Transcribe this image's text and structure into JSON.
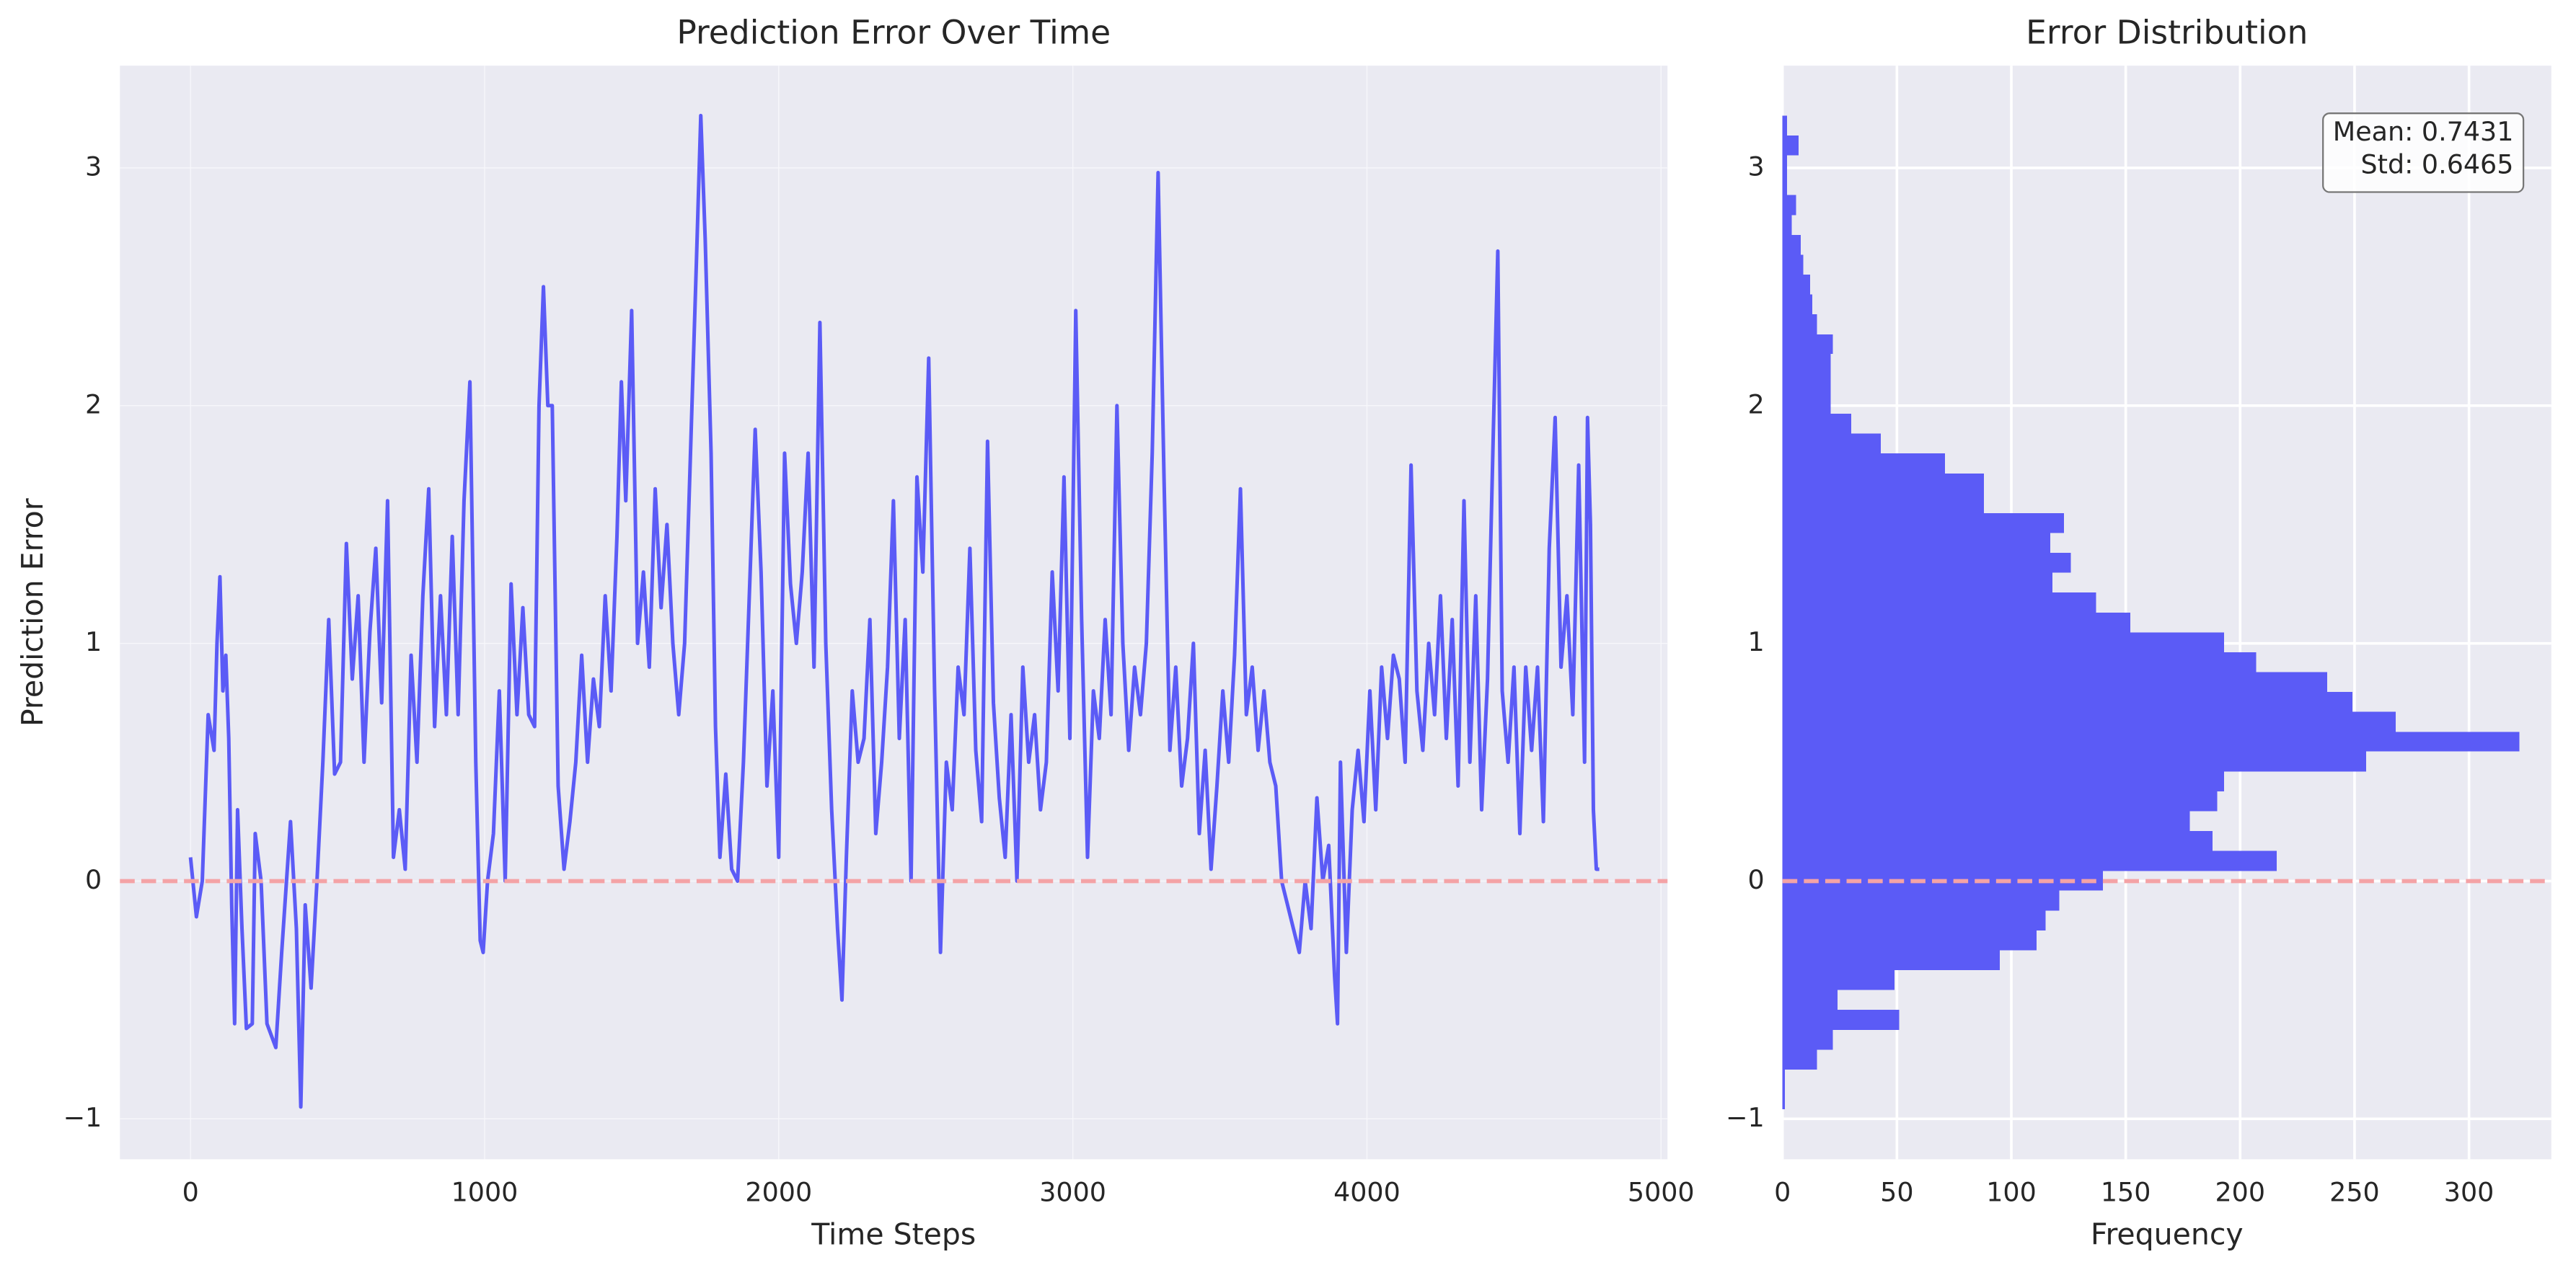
{
  "chart_data": [
    {
      "type": "line",
      "title": "Prediction Error Over Time",
      "x_label": "Time Steps",
      "y_label": "Prediction Error",
      "x": [
        0,
        20,
        40,
        60,
        80,
        90,
        100,
        110,
        120,
        130,
        140,
        150,
        160,
        175,
        190,
        210,
        220,
        240,
        260,
        290,
        310,
        340,
        360,
        375,
        390,
        410,
        430,
        450,
        470,
        490,
        510,
        530,
        550,
        570,
        590,
        610,
        630,
        650,
        670,
        690,
        710,
        730,
        750,
        770,
        790,
        810,
        830,
        850,
        870,
        890,
        910,
        930,
        950,
        970,
        985,
        995,
        1010,
        1030,
        1050,
        1070,
        1090,
        1110,
        1130,
        1150,
        1170,
        1185,
        1200,
        1215,
        1230,
        1250,
        1270,
        1290,
        1310,
        1330,
        1350,
        1370,
        1390,
        1410,
        1430,
        1450,
        1465,
        1480,
        1500,
        1520,
        1540,
        1560,
        1580,
        1600,
        1620,
        1640,
        1660,
        1680,
        1700,
        1720,
        1735,
        1750,
        1770,
        1785,
        1800,
        1820,
        1840,
        1860,
        1880,
        1900,
        1920,
        1940,
        1960,
        1980,
        2000,
        2020,
        2040,
        2060,
        2080,
        2100,
        2120,
        2140,
        2160,
        2180,
        2200,
        2215,
        2230,
        2250,
        2270,
        2290,
        2310,
        2330,
        2350,
        2370,
        2390,
        2410,
        2430,
        2450,
        2470,
        2490,
        2510,
        2530,
        2550,
        2570,
        2590,
        2610,
        2630,
        2650,
        2670,
        2690,
        2710,
        2730,
        2750,
        2770,
        2790,
        2810,
        2830,
        2850,
        2870,
        2890,
        2910,
        2930,
        2950,
        2970,
        2990,
        3010,
        3030,
        3050,
        3070,
        3090,
        3110,
        3130,
        3150,
        3170,
        3190,
        3210,
        3230,
        3250,
        3270,
        3290,
        3310,
        3330,
        3350,
        3370,
        3390,
        3410,
        3430,
        3450,
        3470,
        3490,
        3510,
        3530,
        3550,
        3570,
        3590,
        3610,
        3630,
        3650,
        3670,
        3690,
        3710,
        3730,
        3750,
        3770,
        3790,
        3810,
        3830,
        3850,
        3870,
        3890,
        3900,
        3910,
        3930,
        3950,
        3970,
        3990,
        4010,
        4030,
        4050,
        4070,
        4090,
        4110,
        4130,
        4150,
        4170,
        4190,
        4210,
        4230,
        4250,
        4270,
        4290,
        4310,
        4330,
        4350,
        4370,
        4390,
        4410,
        4430,
        4445,
        4460,
        4480,
        4500,
        4520,
        4540,
        4560,
        4580,
        4600,
        4620,
        4640,
        4660,
        4680,
        4700,
        4720,
        4740,
        4750,
        4760,
        4770,
        4780,
        4790
      ],
      "values": [
        0.1,
        -0.15,
        0.0,
        0.7,
        0.55,
        1.0,
        1.28,
        0.8,
        0.95,
        0.6,
        -0.1,
        -0.6,
        0.3,
        -0.2,
        -0.62,
        -0.6,
        0.2,
        0.0,
        -0.6,
        -0.7,
        -0.3,
        0.25,
        -0.2,
        -0.95,
        -0.1,
        -0.45,
        0.0,
        0.5,
        1.1,
        0.45,
        0.5,
        1.42,
        0.85,
        1.2,
        0.5,
        1.05,
        1.4,
        0.75,
        1.6,
        0.1,
        0.3,
        0.05,
        0.95,
        0.5,
        1.2,
        1.65,
        0.65,
        1.2,
        0.7,
        1.45,
        0.7,
        1.6,
        2.1,
        0.5,
        -0.25,
        -0.3,
        0.0,
        0.2,
        0.8,
        0.0,
        1.25,
        0.7,
        1.15,
        0.7,
        0.65,
        2.0,
        2.5,
        2.0,
        2.0,
        0.4,
        0.05,
        0.25,
        0.5,
        0.95,
        0.5,
        0.85,
        0.65,
        1.2,
        0.8,
        1.45,
        2.1,
        1.6,
        2.4,
        1.0,
        1.3,
        0.9,
        1.65,
        1.15,
        1.5,
        1.0,
        0.7,
        1.0,
        1.8,
        2.6,
        3.22,
        2.7,
        1.8,
        0.65,
        0.1,
        0.45,
        0.05,
        0.0,
        0.5,
        1.2,
        1.9,
        1.3,
        0.4,
        0.8,
        0.1,
        1.8,
        1.25,
        1.0,
        1.3,
        1.8,
        0.9,
        2.35,
        1.0,
        0.3,
        -0.2,
        -0.5,
        0.1,
        0.8,
        0.5,
        0.6,
        1.1,
        0.2,
        0.5,
        0.9,
        1.6,
        0.6,
        1.1,
        0.0,
        1.7,
        1.3,
        2.2,
        0.8,
        -0.3,
        0.5,
        0.3,
        0.9,
        0.7,
        1.4,
        0.55,
        0.25,
        1.85,
        0.75,
        0.35,
        0.1,
        0.7,
        0.0,
        0.9,
        0.5,
        0.7,
        0.3,
        0.5,
        1.3,
        0.8,
        1.7,
        0.6,
        2.4,
        1.1,
        0.1,
        0.8,
        0.6,
        1.1,
        0.7,
        2.0,
        1.0,
        0.55,
        0.9,
        0.7,
        1.0,
        1.8,
        2.98,
        1.7,
        0.55,
        0.9,
        0.4,
        0.6,
        1.0,
        0.2,
        0.55,
        0.05,
        0.4,
        0.8,
        0.5,
        0.95,
        1.65,
        0.7,
        0.9,
        0.55,
        0.8,
        0.5,
        0.4,
        0.0,
        -0.1,
        -0.2,
        -0.3,
        0.0,
        -0.2,
        0.35,
        0.0,
        0.15,
        -0.4,
        -0.6,
        0.5,
        -0.3,
        0.3,
        0.55,
        0.25,
        0.8,
        0.3,
        0.9,
        0.6,
        0.95,
        0.85,
        0.5,
        1.75,
        0.8,
        0.55,
        1.0,
        0.7,
        1.2,
        0.6,
        1.1,
        0.4,
        1.6,
        0.5,
        1.2,
        0.3,
        0.85,
        1.9,
        2.65,
        0.8,
        0.5,
        0.9,
        0.2,
        0.9,
        0.55,
        0.9,
        0.25,
        1.4,
        1.95,
        0.9,
        1.2,
        0.7,
        1.75,
        0.5,
        1.95,
        1.5,
        0.3,
        0.05,
        0.05
      ],
      "color": "#5b5bf6",
      "reference_line": 0,
      "reference_color": "#f4a3a6",
      "xlim": [
        -240,
        5022
      ],
      "ylim": [
        -1.17,
        3.43
      ],
      "xticks": [
        0,
        1000,
        2000,
        3000,
        4000,
        5000
      ],
      "yticks": [
        {
          "value": -1,
          "label": "−1"
        },
        0,
        1,
        2,
        3
      ],
      "grid": true
    },
    {
      "type": "histogram",
      "orientation": "horizontal",
      "title": "Error Distribution",
      "x_label": "Frequency",
      "bins": [
        -0.96,
        -0.876,
        -0.793,
        -0.709,
        -0.626,
        -0.542,
        -0.458,
        -0.375,
        -0.291,
        -0.208,
        -0.124,
        -0.04,
        0.043,
        0.127,
        0.21,
        0.294,
        0.378,
        0.461,
        0.545,
        0.628,
        0.712,
        0.796,
        0.879,
        0.963,
        1.046,
        1.13,
        1.214,
        1.297,
        1.381,
        1.464,
        1.548,
        1.632,
        1.715,
        1.799,
        1.882,
        1.966,
        2.05,
        2.133,
        2.217,
        2.3,
        2.384,
        2.468,
        2.551,
        2.635,
        2.718,
        2.802,
        2.886,
        2.969,
        3.053,
        3.136,
        3.22
      ],
      "values": [
        1,
        1,
        15,
        22,
        51,
        24,
        49,
        95,
        111,
        115,
        121,
        140,
        216,
        188,
        178,
        190,
        193,
        255,
        322,
        268,
        249,
        238,
        207,
        193,
        152,
        137,
        118,
        126,
        117,
        123,
        88,
        88,
        71,
        43,
        30,
        21,
        21,
        21,
        22,
        15,
        13,
        12,
        9,
        8,
        4,
        6,
        2,
        2,
        7,
        2
      ],
      "color": "#5b5bf6",
      "reference_line": 0,
      "reference_color": "#f4a3a6",
      "annotation": [
        "Mean: 0.7431",
        "Std: 0.6465"
      ],
      "xlim": [
        0,
        336
      ],
      "ylim": [
        -1.17,
        3.43
      ],
      "xticks": [
        0,
        50,
        100,
        150,
        200,
        250,
        300
      ],
      "yticks": [
        {
          "value": -1,
          "label": "−1"
        },
        0,
        1,
        2,
        3
      ],
      "grid": true
    }
  ]
}
